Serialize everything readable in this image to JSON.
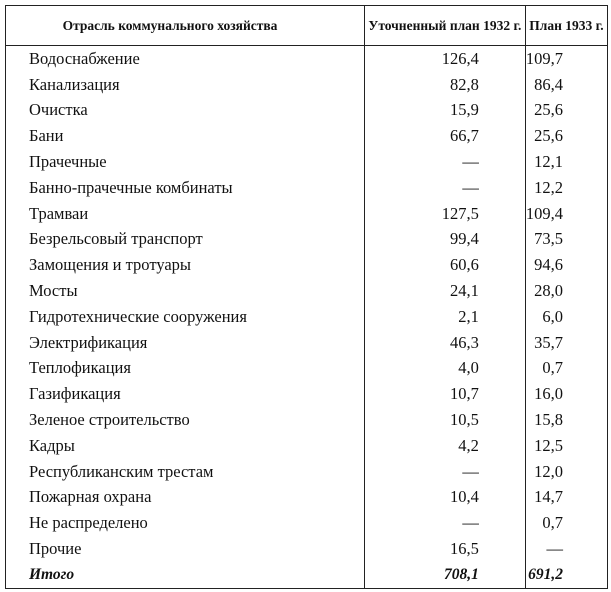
{
  "headers": [
    "Отрасль коммунального хозяйства",
    "Уточненный план 1932 г.",
    "План 1933 г."
  ],
  "rows": [
    [
      "Водоснабжение",
      "126,4",
      "109,7"
    ],
    [
      "Канализация",
      "82,8",
      "86,4"
    ],
    [
      "Очистка",
      "15,9",
      "25,6"
    ],
    [
      "Бани",
      "66,7",
      "25,6"
    ],
    [
      "Прачечные",
      "—",
      "12,1"
    ],
    [
      "Банно-прачечные комбинаты",
      "—",
      "12,2"
    ],
    [
      "Трамваи",
      "127,5",
      "109,4"
    ],
    [
      "Безрельсовый транспорт",
      "99,4",
      "73,5"
    ],
    [
      "Замощения и тротуары",
      "60,6",
      "94,6"
    ],
    [
      "Мосты",
      "24,1",
      "28,0"
    ],
    [
      "Гидротехнические сооружения",
      "2,1",
      "6,0"
    ],
    [
      "Электрификация",
      "46,3",
      "35,7"
    ],
    [
      "Теплофикация",
      "4,0",
      "0,7"
    ],
    [
      "Газификация",
      "10,7",
      "16,0"
    ],
    [
      "Зеленое строительство",
      "10,5",
      "15,8"
    ],
    [
      "Кадры",
      "4,2",
      "12,5"
    ],
    [
      "Республиканским трестам",
      "—",
      "12,0"
    ],
    [
      "Пожарная охрана",
      "10,4",
      "14,7"
    ],
    [
      "Не распределено",
      "—",
      "0,7"
    ],
    [
      "Прочие",
      "16,5",
      "—"
    ]
  ],
  "total": [
    "Итого",
    "708,1",
    "691,2"
  ]
}
